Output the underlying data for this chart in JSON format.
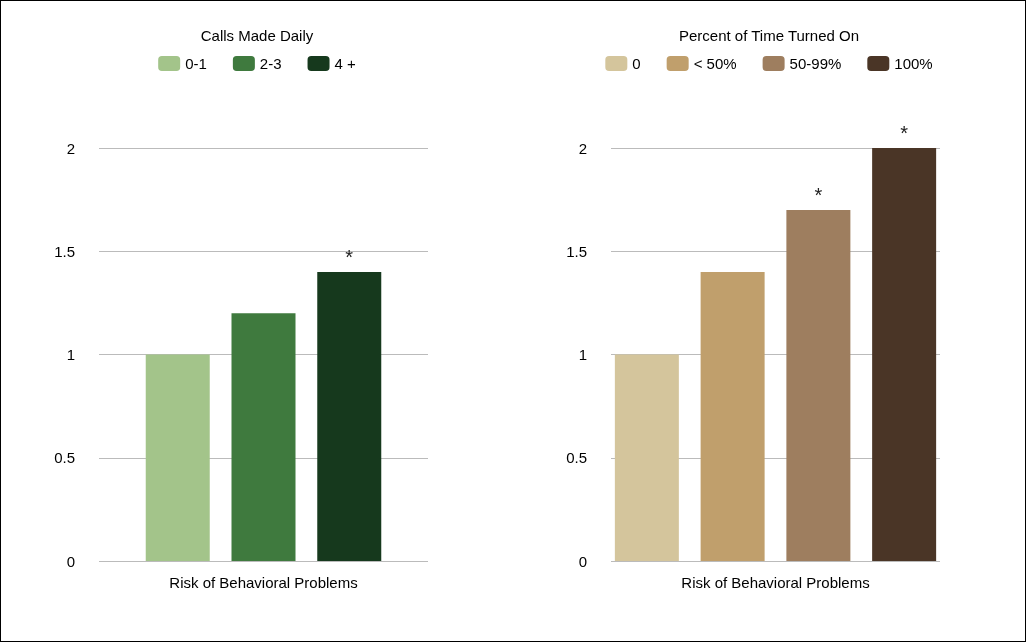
{
  "chart_data": [
    {
      "type": "bar",
      "title": "Calls Made Daily",
      "categories": [
        "Risk of Behavioral Problems"
      ],
      "series": [
        {
          "name": "0-1",
          "color": "#a3c48a",
          "values": [
            1
          ]
        },
        {
          "name": "2-3",
          "color": "#3f7a3e",
          "values": [
            1.2
          ]
        },
        {
          "name": "4 +",
          "color": "#16391d",
          "values": [
            1.4
          ],
          "value_labels": [
            "*"
          ]
        }
      ],
      "ylim": [
        0,
        2
      ],
      "yticks": [
        0,
        0.5,
        1,
        1.5,
        2
      ],
      "grid": "y",
      "legend": "top"
    },
    {
      "type": "bar",
      "title": "Percent of Time Turned On",
      "categories": [
        "Risk of Behavioral Problems"
      ],
      "series": [
        {
          "name": "0",
          "color": "#d4c59c",
          "values": [
            1
          ]
        },
        {
          "name": "< 50%",
          "color": "#c09f6c",
          "values": [
            1.4
          ]
        },
        {
          "name": "50-99%",
          "color": "#9e7e5f",
          "values": [
            1.7
          ],
          "value_labels": [
            "*"
          ]
        },
        {
          "name": "100%",
          "color": "#4a3526",
          "values": [
            2
          ],
          "value_labels": [
            "*"
          ]
        }
      ],
      "ylim": [
        0,
        2
      ],
      "yticks": [
        0,
        0.5,
        1,
        1.5,
        2
      ],
      "grid": "y",
      "legend": "top"
    }
  ]
}
